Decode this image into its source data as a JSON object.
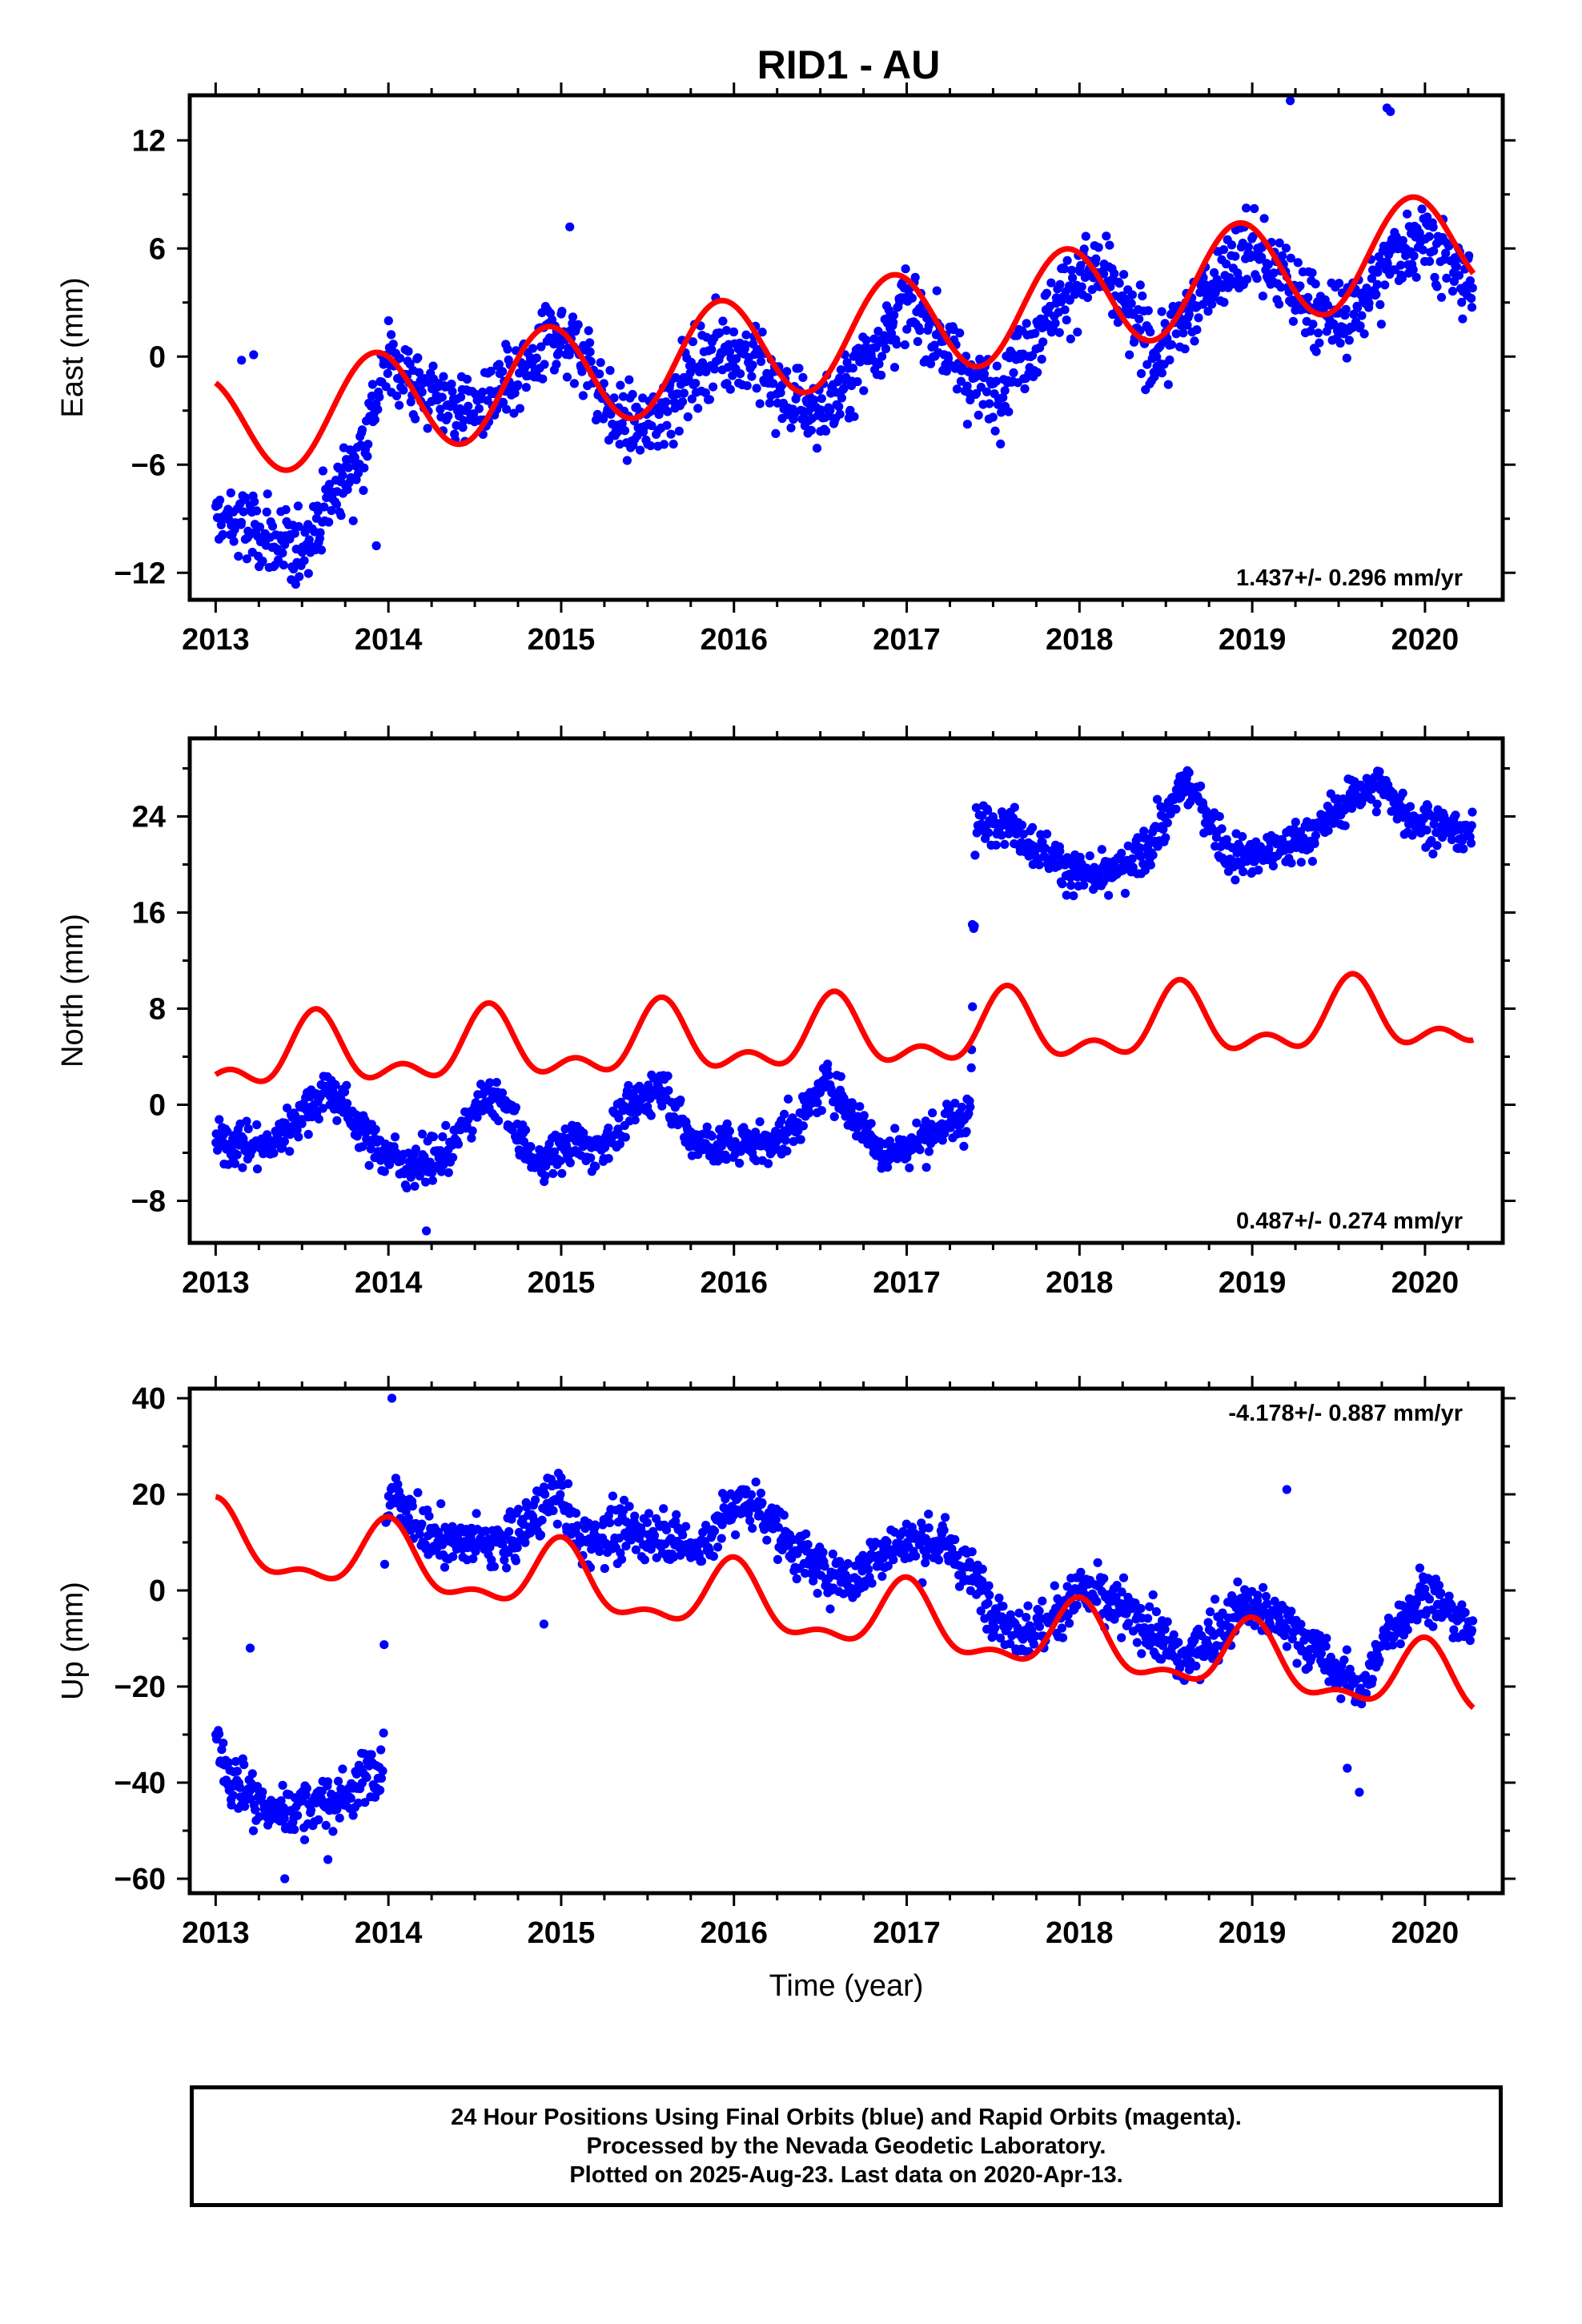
{
  "title": "RID1 - AU",
  "colors": {
    "data_points": "#0000ff",
    "model_curve": "#ff0000",
    "frame": "#000000"
  },
  "footer": {
    "line1": "24 Hour Positions Using Final Orbits (blue) and Rapid Orbits (magenta).",
    "line2": "Processed by the Nevada Geodetic Laboratory.",
    "line3": "Plotted on 2025-Aug-23. Last data on 2020-Apr-13."
  },
  "chart_data": [
    {
      "type": "scatter",
      "title": "RID1 - AU",
      "ylabel": "East (mm)",
      "xlabel": "",
      "xlim": [
        2012.85,
        2020.45
      ],
      "ylim": [
        -13.5,
        14.5
      ],
      "xticks": [
        2013,
        2014,
        2015,
        2016,
        2017,
        2018,
        2019,
        2020
      ],
      "yticks": [
        -12,
        -6,
        0,
        6,
        12
      ],
      "rate_text": "1.437+/- 0.296 mm/yr",
      "rate_position": "bottom-right",
      "grid": false,
      "data_span": [
        2013.0,
        2020.28
      ],
      "series": [
        {
          "type": "scatter",
          "color": "#0000ff",
          "trend": [
            [
              2013.0,
              -9.0
            ],
            [
              2013.2,
              -9.5
            ],
            [
              2013.45,
              -11.0
            ],
            [
              2013.6,
              -9.0
            ],
            [
              2013.85,
              -5.0
            ],
            [
              2014.0,
              0.0
            ],
            [
              2014.2,
              -2.0
            ],
            [
              2014.5,
              -3.0
            ],
            [
              2014.8,
              -1.0
            ],
            [
              2014.95,
              1.5
            ],
            [
              2015.15,
              0.0
            ],
            [
              2015.3,
              -3.5
            ],
            [
              2015.5,
              -4.0
            ],
            [
              2015.7,
              -1.5
            ],
            [
              2015.9,
              0.5
            ],
            [
              2016.1,
              0.0
            ],
            [
              2016.3,
              -2.5
            ],
            [
              2016.55,
              -3.0
            ],
            [
              2016.8,
              0.5
            ],
            [
              2017.0,
              3.0
            ],
            [
              2017.2,
              1.0
            ],
            [
              2017.35,
              -1.0
            ],
            [
              2017.5,
              -2.0
            ],
            [
              2017.7,
              0.5
            ],
            [
              2017.9,
              3.5
            ],
            [
              2018.1,
              5.0
            ],
            [
              2018.3,
              2.0
            ],
            [
              2018.45,
              0.0
            ],
            [
              2018.6,
              2.0
            ],
            [
              2018.8,
              4.5
            ],
            [
              2019.0,
              6.0
            ],
            [
              2019.2,
              4.0
            ],
            [
              2019.45,
              2.0
            ],
            [
              2019.6,
              2.5
            ],
            [
              2019.85,
              6.0
            ],
            [
              2020.0,
              7.0
            ],
            [
              2020.15,
              5.0
            ],
            [
              2020.28,
              3.5
            ]
          ],
          "scatter": 1.8,
          "outliers": [
            [
              2013.15,
              -0.2
            ],
            [
              2013.22,
              0.1
            ],
            [
              2013.93,
              -10.5
            ],
            [
              2015.05,
              7.2
            ],
            [
              2019.22,
              14.2
            ],
            [
              2019.78,
              13.8
            ],
            [
              2019.8,
              13.6
            ]
          ]
        },
        {
          "type": "line",
          "color": "#ff0000",
          "trend_start": -4.0,
          "rate": 1.437,
          "annual_amp": 2.9,
          "annual_phase": 2013.92,
          "semi_amp": 0.0,
          "semi_phase": 2013.0
        }
      ]
    },
    {
      "type": "scatter",
      "ylabel": "North (mm)",
      "xlabel": "",
      "xlim": [
        2012.85,
        2020.45
      ],
      "ylim": [
        -11.5,
        30.5
      ],
      "xticks": [
        2013,
        2014,
        2015,
        2016,
        2017,
        2018,
        2019,
        2020
      ],
      "yticks": [
        -8,
        0,
        8,
        16,
        24
      ],
      "rate_text": "0.487+/- 0.274 mm/yr",
      "rate_position": "bottom-right",
      "grid": false,
      "data_span": [
        2013.0,
        2020.28
      ],
      "series": [
        {
          "type": "scatter",
          "color": "#0000ff",
          "trend": [
            [
              2013.0,
              -3.0
            ],
            [
              2013.3,
              -3.5
            ],
            [
              2013.55,
              0.0
            ],
            [
              2013.65,
              1.5
            ],
            [
              2013.9,
              -3.0
            ],
            [
              2014.1,
              -5.0
            ],
            [
              2014.3,
              -4.5
            ],
            [
              2014.5,
              -0.5
            ],
            [
              2014.62,
              1.0
            ],
            [
              2014.85,
              -5.0
            ],
            [
              2014.95,
              -4.0
            ],
            [
              2015.1,
              -3.0
            ],
            [
              2015.2,
              -4.0
            ],
            [
              2015.3,
              -2.0
            ],
            [
              2015.5,
              1.0
            ],
            [
              2015.6,
              1.5
            ],
            [
              2015.75,
              -3.0
            ],
            [
              2016.0,
              -3.5
            ],
            [
              2016.25,
              -3.0
            ],
            [
              2016.45,
              0.0
            ],
            [
              2016.55,
              2.0
            ],
            [
              2016.7,
              -1.0
            ],
            [
              2016.85,
              -4.0
            ],
            [
              2017.0,
              -3.5
            ],
            [
              2017.2,
              -2.0
            ],
            [
              2017.37,
              -0.5
            ],
            [
              2017.4,
              23.0
            ],
            [
              2017.55,
              24.0
            ],
            [
              2017.75,
              21.5
            ],
            [
              2017.9,
              20.0
            ],
            [
              2018.1,
              18.5
            ],
            [
              2018.3,
              20.0
            ],
            [
              2018.5,
              23.5
            ],
            [
              2018.6,
              27.0
            ],
            [
              2018.75,
              24.0
            ],
            [
              2018.85,
              21.0
            ],
            [
              2019.0,
              20.5
            ],
            [
              2019.2,
              21.5
            ],
            [
              2019.4,
              23.0
            ],
            [
              2019.6,
              26.0
            ],
            [
              2019.75,
              26.5
            ],
            [
              2019.9,
              24.0
            ],
            [
              2020.1,
              23.0
            ],
            [
              2020.28,
              22.5
            ]
          ],
          "scatter": 1.5,
          "outliers": [
            [
              2014.22,
              -10.5
            ],
            [
              2017.38,
              15.0
            ]
          ]
        },
        {
          "type": "line",
          "color": "#ff0000",
          "trend_start": 3.8,
          "rate": 0.487,
          "annual_amp": 2.4,
          "annual_phase": 2013.58,
          "semi_amp": 1.5,
          "semi_phase": 2013.58
        }
      ]
    },
    {
      "type": "scatter",
      "ylabel": "Up (mm)",
      "xlabel": "Time (year)",
      "xlim": [
        2012.85,
        2020.45
      ],
      "ylim": [
        -63,
        42
      ],
      "xticks": [
        2013,
        2014,
        2015,
        2016,
        2017,
        2018,
        2019,
        2020
      ],
      "yticks": [
        -60,
        -40,
        -20,
        0,
        20,
        40
      ],
      "rate_text": "-4.178+/- 0.887 mm/yr",
      "rate_position": "top-right",
      "grid": false,
      "data_span": [
        2013.0,
        2020.28
      ],
      "series": [
        {
          "type": "scatter",
          "color": "#0000ff",
          "trend": [
            [
              2013.0,
              -30.0
            ],
            [
              2013.1,
              -40.0
            ],
            [
              2013.3,
              -46.0
            ],
            [
              2013.5,
              -45.0
            ],
            [
              2013.7,
              -44.0
            ],
            [
              2013.9,
              -38.0
            ],
            [
              2013.97,
              -38.0
            ],
            [
              2013.98,
              15.0
            ],
            [
              2014.05,
              20.0
            ],
            [
              2014.2,
              12.0
            ],
            [
              2014.4,
              10.0
            ],
            [
              2014.7,
              10.0
            ],
            [
              2014.9,
              18.0
            ],
            [
              2015.0,
              20.0
            ],
            [
              2015.1,
              10.0
            ],
            [
              2015.3,
              12.0
            ],
            [
              2015.6,
              12.0
            ],
            [
              2015.8,
              8.0
            ],
            [
              2016.0,
              18.0
            ],
            [
              2016.15,
              18.0
            ],
            [
              2016.3,
              10.0
            ],
            [
              2016.5,
              4.0
            ],
            [
              2016.7,
              2.0
            ],
            [
              2016.85,
              8.0
            ],
            [
              2017.0,
              10.0
            ],
            [
              2017.2,
              10.0
            ],
            [
              2017.4,
              2.0
            ],
            [
              2017.6,
              -8.0
            ],
            [
              2017.8,
              -8.0
            ],
            [
              2018.0,
              0.0
            ],
            [
              2018.2,
              -3.0
            ],
            [
              2018.4,
              -8.0
            ],
            [
              2018.6,
              -15.0
            ],
            [
              2018.75,
              -10.0
            ],
            [
              2018.95,
              -3.0
            ],
            [
              2019.1,
              -5.0
            ],
            [
              2019.3,
              -10.0
            ],
            [
              2019.5,
              -18.0
            ],
            [
              2019.65,
              -20.0
            ],
            [
              2019.8,
              -8.0
            ],
            [
              2020.0,
              0.0
            ],
            [
              2020.15,
              -5.0
            ],
            [
              2020.28,
              -10.0
            ]
          ],
          "scatter": 4.5,
          "outliers": [
            [
              2014.02,
              40.0
            ],
            [
              2013.65,
              -56.0
            ],
            [
              2013.2,
              -12.0
            ],
            [
              2019.2,
              21.0
            ],
            [
              2019.55,
              -37.0
            ],
            [
              2019.62,
              -42.0
            ],
            [
              2013.4,
              -60.0
            ],
            [
              2014.9,
              -7.0
            ]
          ]
        },
        {
          "type": "line",
          "color": "#ff0000",
          "trend_start": 10.0,
          "rate": -4.178,
          "annual_amp": 6.5,
          "annual_phase": 2014.0,
          "semi_amp": 3.0,
          "semi_phase": 2013.0
        }
      ]
    }
  ]
}
